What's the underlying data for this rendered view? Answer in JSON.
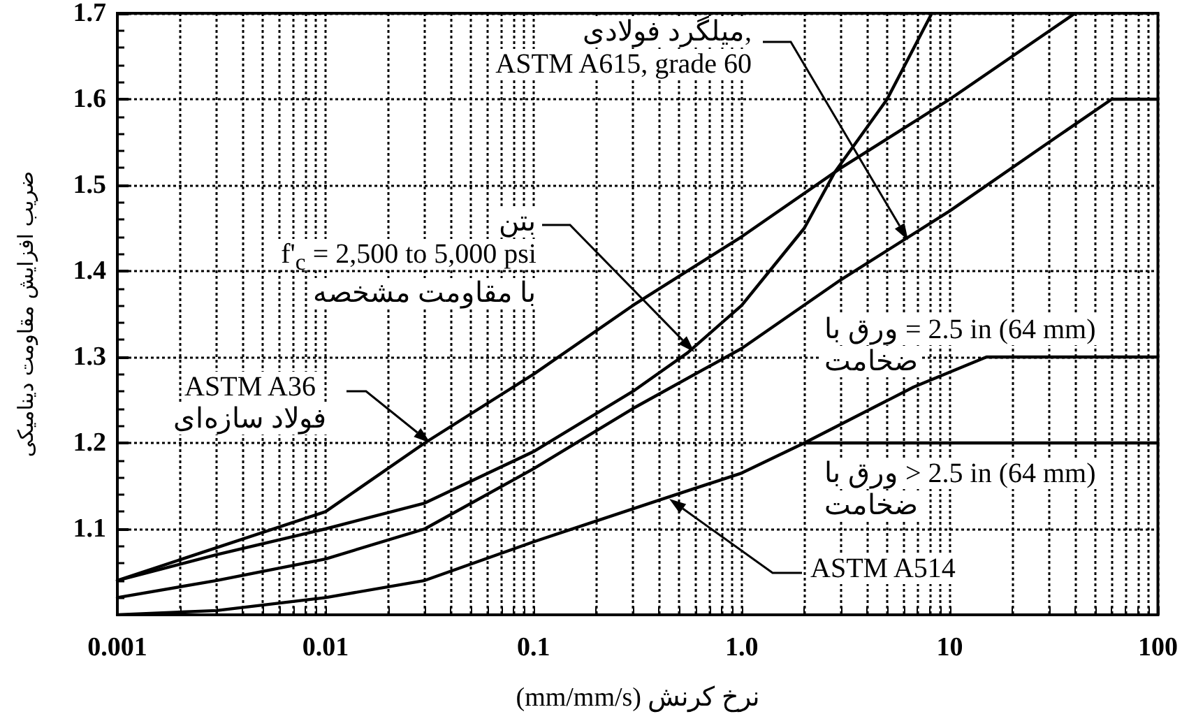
{
  "chart_data": {
    "type": "line",
    "xlabel": "(mm/mm/s) نرخ کرنش",
    "ylabel": "ضریب افزایش مقاومت دینامیکی",
    "log": "x",
    "grid": true,
    "marker": "none",
    "xlim": [
      0.001,
      100
    ],
    "ylim": [
      1.0,
      1.7
    ],
    "xticks": [
      0.001,
      {
        "value": 0.002,
        "label": null
      },
      {
        "value": 0.003,
        "label": null
      },
      {
        "value": 0.004,
        "label": null
      },
      {
        "value": 0.005,
        "label": null
      },
      {
        "value": 0.006,
        "label": null
      },
      {
        "value": 0.007,
        "label": null
      },
      {
        "value": 0.008,
        "label": null
      },
      {
        "value": 0.009,
        "label": null
      },
      0.01,
      {
        "value": 0.02,
        "label": null
      },
      {
        "value": 0.03,
        "label": null
      },
      {
        "value": 0.04,
        "label": null
      },
      {
        "value": 0.05,
        "label": null
      },
      {
        "value": 0.06,
        "label": null
      },
      {
        "value": 0.07,
        "label": null
      },
      {
        "value": 0.08,
        "label": null
      },
      {
        "value": 0.09,
        "label": null
      },
      0.1,
      {
        "value": 0.2,
        "label": null
      },
      {
        "value": 0.3,
        "label": null
      },
      {
        "value": 0.4,
        "label": null
      },
      {
        "value": 0.5,
        "label": null
      },
      {
        "value": 0.6,
        "label": null
      },
      {
        "value": 0.7,
        "label": null
      },
      {
        "value": 0.8,
        "label": null
      },
      {
        "value": 0.9,
        "label": null
      },
      {
        "value": 1,
        "label": "1.0"
      },
      {
        "value": 2,
        "label": null
      },
      {
        "value": 3,
        "label": null
      },
      {
        "value": 4,
        "label": null
      },
      {
        "value": 5,
        "label": null
      },
      {
        "value": 6,
        "label": null
      },
      {
        "value": 7,
        "label": null
      },
      {
        "value": 8,
        "label": null
      },
      {
        "value": 9,
        "label": null
      },
      10,
      {
        "value": 20,
        "label": null
      },
      {
        "value": 30,
        "label": null
      },
      {
        "value": 40,
        "label": null
      },
      {
        "value": 50,
        "label": null
      },
      {
        "value": 60,
        "label": null
      },
      {
        "value": 70,
        "label": null
      },
      {
        "value": 80,
        "label": null
      },
      {
        "value": 90,
        "label": null
      },
      100
    ],
    "yticks": [
      {
        "value": 1.0,
        "label": null
      },
      1.1,
      1.2,
      1.3,
      1.4,
      1.5,
      1.6,
      1.7
    ],
    "series": [
      {
        "color": "#000000",
        "x": [
          0.001,
          0.01,
          0.03,
          0.1,
          0.3,
          1,
          3,
          10,
          40
        ],
        "values": [
          1.04,
          1.12,
          1.2,
          1.28,
          1.36,
          1.44,
          1.52,
          1.6,
          1.7
        ]
      },
      {
        "color": "#000000",
        "x": [
          0.001,
          0.003,
          0.01,
          0.03,
          0.1,
          0.3,
          0.55,
          1,
          2,
          2.8,
          5,
          8.2
        ],
        "values": [
          1.04,
          1.07,
          1.1,
          1.13,
          1.19,
          1.26,
          1.305,
          1.36,
          1.45,
          1.515,
          1.6,
          1.7
        ]
      },
      {
        "color": "#000000",
        "x": [
          0.001,
          0.003,
          0.01,
          0.03,
          0.1,
          0.3,
          1,
          3,
          10,
          30,
          60,
          100
        ],
        "values": [
          1.02,
          1.04,
          1.065,
          1.1,
          1.17,
          1.24,
          1.31,
          1.39,
          1.47,
          1.55,
          1.6,
          1.6
        ]
      },
      {
        "color": "#000000",
        "x": [
          0.001,
          0.003,
          0.01,
          0.03,
          0.1,
          0.42,
          1,
          2,
          6.7,
          15,
          100
        ],
        "values": [
          1.0,
          1.005,
          1.02,
          1.04,
          1.085,
          1.135,
          1.165,
          1.2,
          1.265,
          1.3,
          1.3
        ]
      },
      {
        "color": "#000000",
        "x": [
          2,
          100
        ],
        "values": [
          1.2,
          1.2
        ]
      }
    ],
    "annotations": [
      "میلگرد فولادی,\nASTM A615, grade 60",
      "بتن\nf'$_{c}$ = 2,500 to 5,000 psi\nبا مقاومت مشخصه",
      "ASTM A36\nفولاد سازه‌ای",
      "ورق با = 2.5 in (64 mm)\nضخامت",
      "ورق با > 2.5 in (64 mm)\nضخامت",
      "ASTM A514"
    ]
  }
}
